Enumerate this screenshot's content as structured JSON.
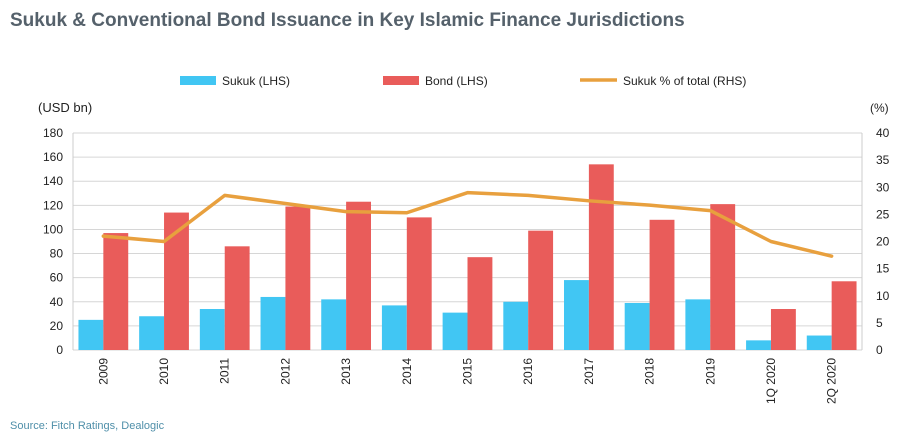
{
  "title": "Sukuk & Conventional Bond Issuance in Key Islamic Finance Jurisdictions",
  "source": "Source: Fitch Ratings, Dealogic",
  "chart_data": {
    "type": "bar",
    "categories": [
      "2009",
      "2010",
      "2011",
      "2012",
      "2013",
      "2014",
      "2015",
      "2016",
      "2017",
      "2018",
      "2019",
      "1Q 2020",
      "2Q 2020"
    ],
    "series": [
      {
        "name": "Sukuk (LHS)",
        "type": "bar",
        "axis": "left",
        "color": "#41c6f3",
        "values": [
          25,
          28,
          34,
          44,
          42,
          37,
          31,
          40,
          58,
          39,
          42,
          8,
          12
        ]
      },
      {
        "name": "Bond (LHS)",
        "type": "bar",
        "axis": "left",
        "color": "#e95c5a",
        "values": [
          97,
          114,
          86,
          119,
          123,
          110,
          77,
          99,
          154,
          108,
          121,
          34,
          57
        ]
      },
      {
        "name": "Sukuk % of total (RHS)",
        "type": "line",
        "axis": "right",
        "color": "#e8a03e",
        "values": [
          21,
          20,
          28.5,
          27,
          25.5,
          25.3,
          29,
          28.5,
          27.5,
          26.7,
          25.7,
          20,
          17.3
        ]
      }
    ],
    "ylabel_left": "(USD bn)",
    "ylabel_right": "(%)",
    "ylim_left": [
      0,
      180
    ],
    "ylim_right": [
      0,
      40
    ],
    "yticks_left": [
      0,
      20,
      40,
      60,
      80,
      100,
      120,
      140,
      160,
      180
    ],
    "yticks_right": [
      0,
      5,
      10,
      15,
      20,
      25,
      30,
      35,
      40
    ],
    "grid": true,
    "legend": "top"
  }
}
